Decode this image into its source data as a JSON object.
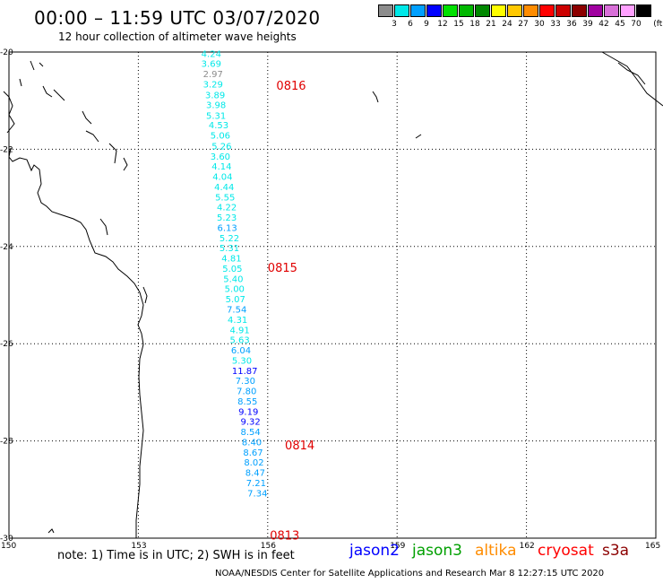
{
  "header": {
    "title": "00:00 – 11:59 UTC 03/07/2020",
    "subtitle": "12 hour collection of altimeter wave heights"
  },
  "legend": {
    "unit": "(ft)",
    "levels": [
      {
        "label": "3",
        "color": "#8c8c8c"
      },
      {
        "label": "6",
        "color": "#00e8e8"
      },
      {
        "label": "9",
        "color": "#00a0ff"
      },
      {
        "label": "12",
        "color": "#0000ff"
      },
      {
        "label": "15",
        "color": "#00e000"
      },
      {
        "label": "18",
        "color": "#00b800"
      },
      {
        "label": "21",
        "color": "#008800"
      },
      {
        "label": "24",
        "color": "#ffff00"
      },
      {
        "label": "27",
        "color": "#ffc800"
      },
      {
        "label": "30",
        "color": "#ff8c00"
      },
      {
        "label": "33",
        "color": "#ff0000"
      },
      {
        "label": "36",
        "color": "#cc0000"
      },
      {
        "label": "39",
        "color": "#8c0000"
      },
      {
        "label": "42",
        "color": "#a000a0"
      },
      {
        "label": "45",
        "color": "#d870d8"
      },
      {
        "label": "70",
        "color": "#ffa0ff"
      },
      {
        "label": "",
        "color": "#000000"
      }
    ]
  },
  "axes": {
    "lat_labels": [
      "-20",
      "-22",
      "-24",
      "-26",
      "-28",
      "-30"
    ],
    "lon_labels": [
      "150",
      "153",
      "156",
      "159",
      "162",
      "165"
    ]
  },
  "passes": [
    {
      "label": "0816",
      "lon": 156.2,
      "lat": -20.7
    },
    {
      "label": "0815",
      "lon": 156.0,
      "lat": -24.45
    },
    {
      "label": "0814",
      "lon": 156.4,
      "lat": -28.1
    },
    {
      "label": "0813",
      "lon": 156.05,
      "lat": -29.95
    }
  ],
  "observations": [
    {
      "v": "4.24",
      "lat": -20.1,
      "lon": 154.46
    },
    {
      "v": "3.69",
      "lat": -20.3,
      "lon": 154.46
    },
    {
      "v": "2.97",
      "lat": -20.52,
      "lon": 154.5
    },
    {
      "v": "3.29",
      "lat": -20.73,
      "lon": 154.5
    },
    {
      "v": "3.89",
      "lat": -20.95,
      "lon": 154.55
    },
    {
      "v": "3.98",
      "lat": -21.15,
      "lon": 154.57
    },
    {
      "v": "5.31",
      "lat": -21.37,
      "lon": 154.57
    },
    {
      "v": "4.53",
      "lat": -21.57,
      "lon": 154.63
    },
    {
      "v": "5.06",
      "lat": -21.78,
      "lon": 154.67
    },
    {
      "v": "5.26",
      "lat": -22.0,
      "lon": 154.7
    },
    {
      "v": "3.60",
      "lat": -22.21,
      "lon": 154.67
    },
    {
      "v": "4.14",
      "lat": -22.42,
      "lon": 154.7
    },
    {
      "v": "4.04",
      "lat": -22.63,
      "lon": 154.72
    },
    {
      "v": "4.44",
      "lat": -22.84,
      "lon": 154.76
    },
    {
      "v": "5.55",
      "lat": -23.05,
      "lon": 154.78
    },
    {
      "v": "4.22",
      "lat": -23.26,
      "lon": 154.82
    },
    {
      "v": "5.23",
      "lat": -23.47,
      "lon": 154.82
    },
    {
      "v": "6.13",
      "lat": -23.68,
      "lon": 154.83
    },
    {
      "v": "5.22",
      "lat": -23.89,
      "lon": 154.88
    },
    {
      "v": "5.31",
      "lat": -24.1,
      "lon": 154.88
    },
    {
      "v": "4.81",
      "lat": -24.31,
      "lon": 154.93
    },
    {
      "v": "5.05",
      "lat": -24.52,
      "lon": 154.95
    },
    {
      "v": "5.40",
      "lat": -24.73,
      "lon": 154.97
    },
    {
      "v": "5.00",
      "lat": -24.94,
      "lon": 155.0
    },
    {
      "v": "5.07",
      "lat": -25.15,
      "lon": 155.02
    },
    {
      "v": "7.54",
      "lat": -25.36,
      "lon": 155.05
    },
    {
      "v": "4.31",
      "lat": -25.57,
      "lon": 155.07
    },
    {
      "v": "4.91",
      "lat": -25.78,
      "lon": 155.12
    },
    {
      "v": "5.63",
      "lat": -25.99,
      "lon": 155.12
    },
    {
      "v": "6.04",
      "lat": -26.2,
      "lon": 155.15
    },
    {
      "v": "5.30",
      "lat": -26.41,
      "lon": 155.17
    },
    {
      "v": "11.87",
      "lat": -26.62,
      "lon": 155.17
    },
    {
      "v": "7.30",
      "lat": -26.83,
      "lon": 155.25
    },
    {
      "v": "7.80",
      "lat": -27.04,
      "lon": 155.28
    },
    {
      "v": "8.55",
      "lat": -27.25,
      "lon": 155.3
    },
    {
      "v": "9.19",
      "lat": -27.46,
      "lon": 155.32
    },
    {
      "v": "9.32",
      "lat": -27.67,
      "lon": 155.37
    },
    {
      "v": "8.54",
      "lat": -27.88,
      "lon": 155.37
    },
    {
      "v": "8.40",
      "lat": -28.09,
      "lon": 155.4
    },
    {
      "v": "8.67",
      "lat": -28.3,
      "lon": 155.43
    },
    {
      "v": "8.02",
      "lat": -28.51,
      "lon": 155.45
    },
    {
      "v": "8.47",
      "lat": -28.72,
      "lon": 155.48
    },
    {
      "v": "7.21",
      "lat": -28.93,
      "lon": 155.5
    },
    {
      "v": "7.34",
      "lat": -29.14,
      "lon": 155.53
    }
  ],
  "footer": {
    "note": "note:  1) Time is in UTC;  2) SWH is in feet",
    "missions": [
      {
        "name": "jason2",
        "color": "#0000ff"
      },
      {
        "name": "jason3",
        "color": "#00a000"
      },
      {
        "name": "altika",
        "color": "#ff8c00"
      },
      {
        "name": "cryosat",
        "color": "#ff0000"
      },
      {
        "name": "s3a",
        "color": "#8c0000"
      }
    ],
    "credit": "NOAA/NESDIS Center for Satellite Applications and Research    Mar  8 12:27:15 UTC 2020"
  }
}
